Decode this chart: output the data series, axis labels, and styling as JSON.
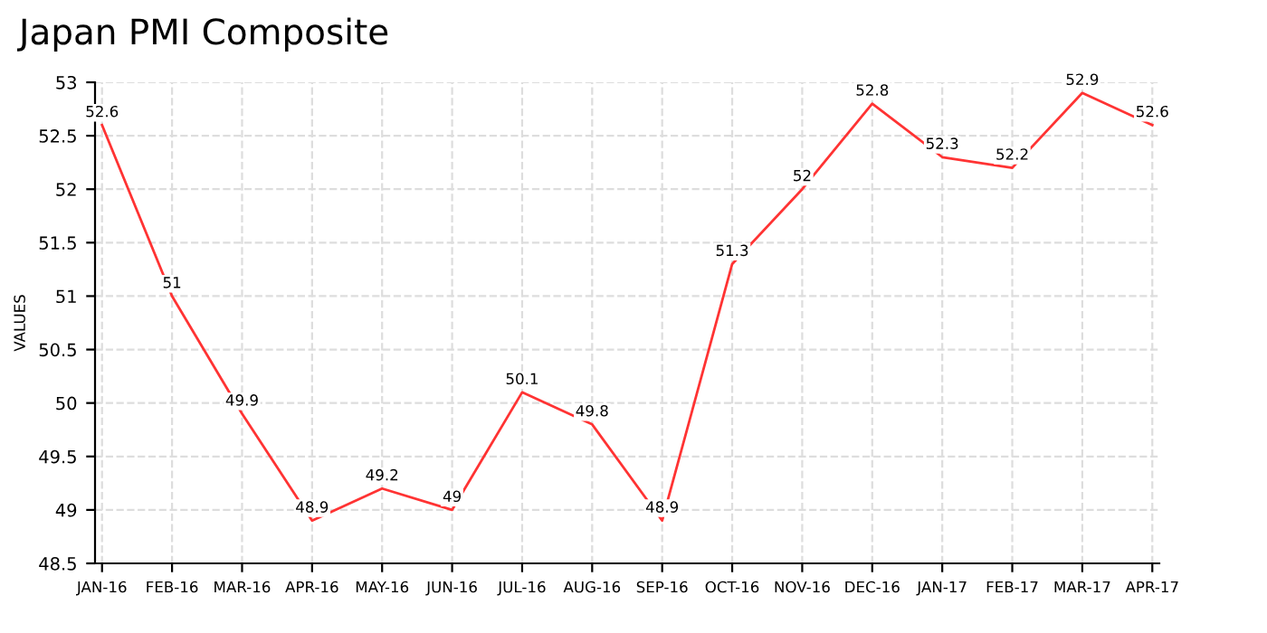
{
  "chart_data": {
    "type": "line",
    "title": "Japan PMI Composite",
    "ylabel": "VALUES",
    "categories": [
      "JAN-16",
      "FEB-16",
      "MAR-16",
      "APR-16",
      "MAY-16",
      "JUN-16",
      "JUL-16",
      "AUG-16",
      "SEP-16",
      "OCT-16",
      "NOV-16",
      "DEC-16",
      "JAN-17",
      "FEB-17",
      "MAR-17",
      "APR-17"
    ],
    "series": [
      {
        "color": "#ff3333",
        "values": [
          52.6,
          51,
          49.9,
          48.9,
          49.2,
          49,
          50.1,
          49.8,
          48.9,
          51.3,
          52,
          52.8,
          52.3,
          52.2,
          52.9,
          52.6
        ]
      }
    ],
    "ylim": [
      48.5,
      53
    ],
    "yticks": [
      48.5,
      49,
      49.5,
      50,
      50.5,
      51,
      51.5,
      52,
      52.5,
      53
    ],
    "grid": true,
    "data_labels": true,
    "marker": "none",
    "line_style": "solid",
    "legend": false
  }
}
